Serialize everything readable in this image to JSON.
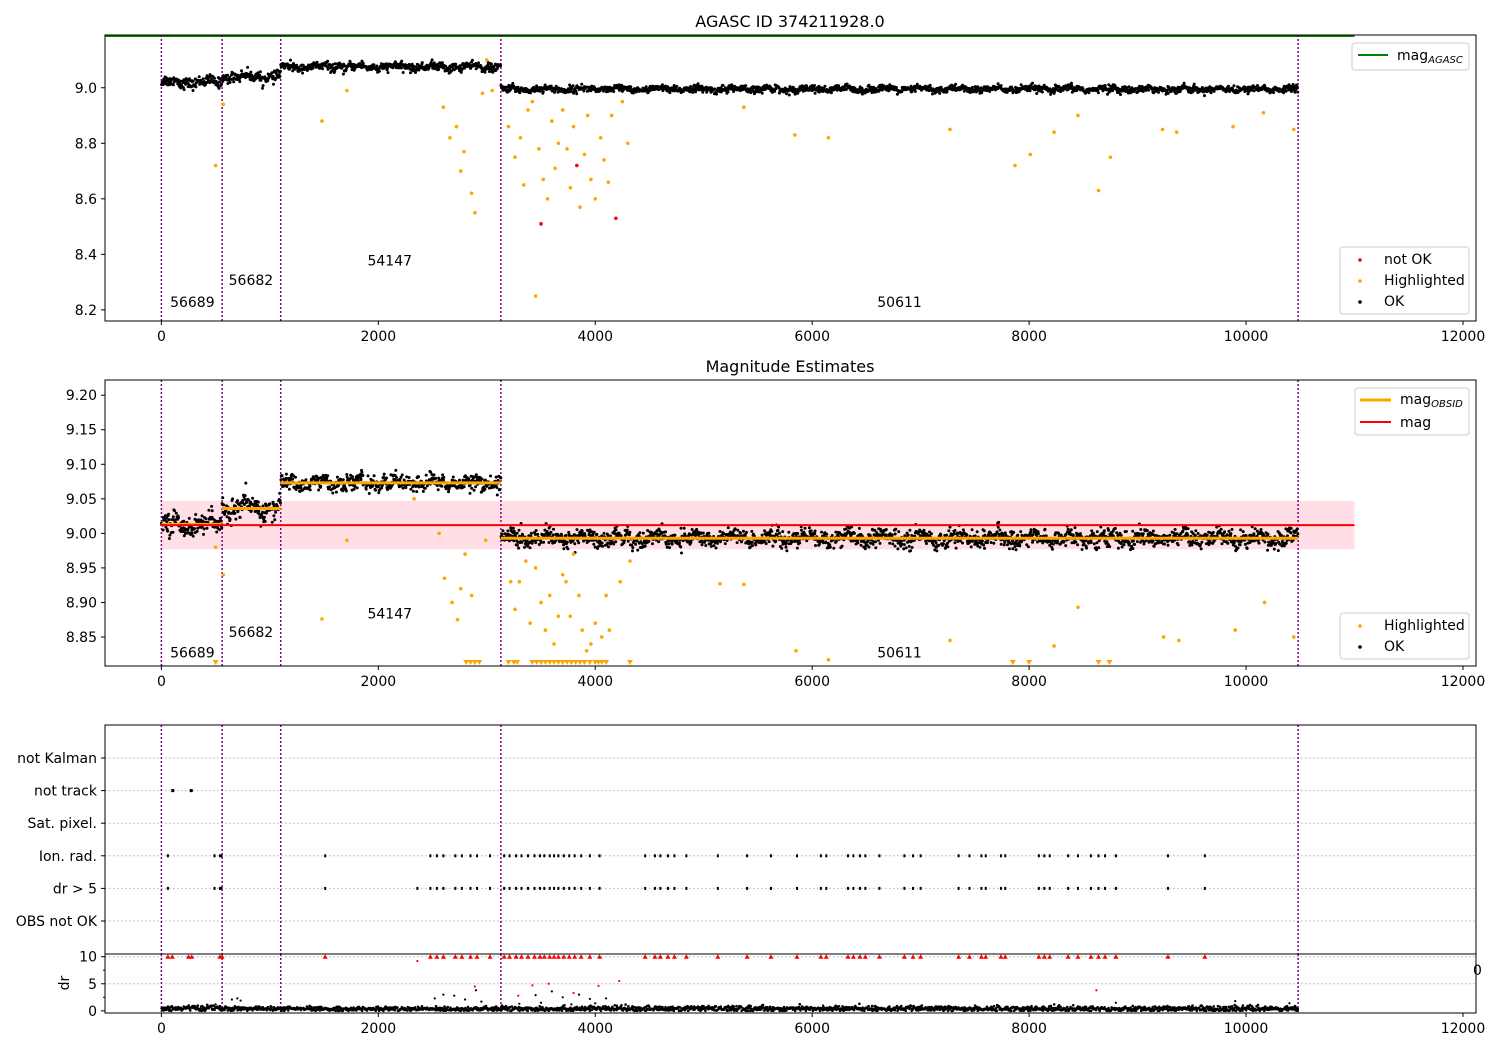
{
  "figure": {
    "title_top": "AGASC ID 374211928.0",
    "title_mid": "Magnitude Estimates"
  },
  "xaxis": {
    "xlim": [
      -520,
      12120
    ],
    "ticks": [
      0,
      2000,
      4000,
      6000,
      8000,
      10000,
      12000
    ],
    "tick_labels": [
      "0",
      "2000",
      "4000",
      "6000",
      "8000",
      "10000",
      "12000"
    ],
    "partial_label_visible_in_bottom": "0"
  },
  "obsids": [
    {
      "label": "56689",
      "start": 0,
      "end": 560,
      "mag_top": 9.02,
      "mag_mid": 9.013
    },
    {
      "label": "56682",
      "start": 560,
      "end": 1100,
      "mag_top": 9.04,
      "mag_mid": 9.036
    },
    {
      "label": "54147",
      "start": 1100,
      "end": 3130,
      "mag_top": 9.075,
      "mag_mid": 9.073
    },
    {
      "label": "50611",
      "start": 3130,
      "end": 10480,
      "mag_top": 8.995,
      "mag_mid": 8.993
    }
  ],
  "colors": {
    "ok": "#000000",
    "highlighted": "#ffa500",
    "not_ok": "#ff0000",
    "obs_boundary": "#800080",
    "mag_agasc_line": "#008000",
    "mag_line": "#ff0000",
    "mag_band": "#ffc0cb",
    "mag_obsid_line": "#ffa500",
    "dr_limit_markers": "#ff0000",
    "grid": "#b0b0b0"
  },
  "chart_data": [
    {
      "type": "scatter",
      "title": "AGASC ID 374211928.0",
      "xlim": [
        -520,
        12120
      ],
      "ylim": [
        8.16,
        9.19
      ],
      "yticks": [
        8.2,
        8.4,
        8.6,
        8.8,
        9.0
      ],
      "ytick_labels": [
        "8.2",
        "8.4",
        "8.6",
        "8.8",
        "9.0"
      ],
      "mag_agasc": 9.19,
      "mag_agasc_xrange": [
        -520,
        11000
      ],
      "obsid_labels": [
        {
          "text": "56689",
          "x": 80,
          "y": 8.21
        },
        {
          "text": "56682",
          "x": 620,
          "y": 8.29
        },
        {
          "text": "54147",
          "x": 1900,
          "y": 8.36
        },
        {
          "text": "50611",
          "x": 6600,
          "y": 8.21
        }
      ],
      "series": [
        {
          "name": "not OK",
          "color": "#ff0000",
          "points": [
            [
              3500,
              8.51
            ],
            [
              3830,
              8.72
            ],
            [
              4190,
              8.53
            ]
          ]
        },
        {
          "name": "Highlighted",
          "color": "#ffa500",
          "points": [
            [
              500,
              8.72
            ],
            [
              570,
              8.94
            ],
            [
              1480,
              8.88
            ],
            [
              1710,
              8.99
            ],
            [
              2600,
              8.93
            ],
            [
              2660,
              8.82
            ],
            [
              2720,
              8.86
            ],
            [
              2760,
              8.7
            ],
            [
              2790,
              8.77
            ],
            [
              2860,
              8.62
            ],
            [
              2890,
              8.55
            ],
            [
              2960,
              8.98
            ],
            [
              3000,
              9.1
            ],
            [
              3050,
              8.99
            ],
            [
              3200,
              8.86
            ],
            [
              3260,
              8.75
            ],
            [
              3310,
              8.82
            ],
            [
              3340,
              8.65
            ],
            [
              3380,
              8.92
            ],
            [
              3420,
              8.95
            ],
            [
              3450,
              8.25
            ],
            [
              3480,
              8.78
            ],
            [
              3520,
              8.67
            ],
            [
              3560,
              8.6
            ],
            [
              3600,
              8.88
            ],
            [
              3630,
              8.71
            ],
            [
              3660,
              8.8
            ],
            [
              3700,
              8.92
            ],
            [
              3740,
              8.78
            ],
            [
              3770,
              8.64
            ],
            [
              3800,
              8.86
            ],
            [
              3860,
              8.57
            ],
            [
              3900,
              8.76
            ],
            [
              3930,
              8.9
            ],
            [
              3960,
              8.67
            ],
            [
              4000,
              8.6
            ],
            [
              4050,
              8.82
            ],
            [
              4080,
              8.74
            ],
            [
              4120,
              8.66
            ],
            [
              4150,
              8.9
            ],
            [
              4250,
              8.95
            ],
            [
              4300,
              8.8
            ],
            [
              5370,
              8.93
            ],
            [
              5840,
              8.83
            ],
            [
              6150,
              8.82
            ],
            [
              7270,
              8.85
            ],
            [
              7870,
              8.72
            ],
            [
              8010,
              8.76
            ],
            [
              8230,
              8.84
            ],
            [
              8450,
              8.9
            ],
            [
              8640,
              8.63
            ],
            [
              8750,
              8.75
            ],
            [
              9230,
              8.85
            ],
            [
              9360,
              8.84
            ],
            [
              9880,
              8.86
            ],
            [
              10160,
              8.91
            ],
            [
              10440,
              8.85
            ]
          ]
        },
        {
          "name": "OK",
          "color": "#000000",
          "bands": [
            [
              0,
              560,
              9.02,
              0.015
            ],
            [
              560,
              1100,
              9.04,
              0.015
            ],
            [
              1100,
              3130,
              9.075,
              0.012
            ],
            [
              3130,
              10480,
              8.995,
              0.01
            ]
          ]
        }
      ],
      "legend": {
        "placement": "lower-right",
        "entries": [
          "not OK",
          "Highlighted",
          "OK"
        ]
      },
      "legend2": {
        "placement": "upper-right",
        "entries": [
          "mag_AGASC"
        ]
      }
    },
    {
      "type": "scatter",
      "title": "Magnitude Estimates",
      "xlim": [
        -520,
        12120
      ],
      "ylim": [
        8.808,
        9.222
      ],
      "yticks": [
        8.85,
        8.9,
        8.95,
        9.0,
        9.05,
        9.1,
        9.15,
        9.2
      ],
      "ytick_labels": [
        "8.85",
        "8.90",
        "8.95",
        "9.00",
        "9.05",
        "9.10",
        "9.15",
        "9.20"
      ],
      "mag": 9.012,
      "mag_band": [
        8.977,
        9.047
      ],
      "mag_xrange": [
        0,
        11000
      ],
      "obsid_labels": [
        {
          "text": "56689",
          "x": 80,
          "y": 8.82
        },
        {
          "text": "56682",
          "x": 620,
          "y": 8.85
        },
        {
          "text": "54147",
          "x": 1900,
          "y": 8.877
        },
        {
          "text": "50611",
          "x": 6600,
          "y": 8.82
        }
      ],
      "clipped_low_markers_x": [
        500,
        2810,
        2850,
        2890,
        2930,
        3200,
        3250,
        3280,
        3420,
        3460,
        3500,
        3540,
        3580,
        3620,
        3660,
        3700,
        3740,
        3780,
        3820,
        3860,
        3900,
        3950,
        4000,
        4030,
        4060,
        4100,
        4320,
        7850,
        8000,
        8640,
        8740
      ],
      "series": [
        {
          "name": "Highlighted",
          "color": "#ffa500",
          "points": [
            [
              500,
              8.98
            ],
            [
              570,
              8.94
            ],
            [
              1480,
              8.876
            ],
            [
              1710,
              8.99
            ],
            [
              2330,
              9.05
            ],
            [
              2560,
              9.0
            ],
            [
              2610,
              8.935
            ],
            [
              2680,
              8.9
            ],
            [
              2730,
              8.875
            ],
            [
              2760,
              8.92
            ],
            [
              2800,
              8.97
            ],
            [
              2860,
              8.91
            ],
            [
              2990,
              8.99
            ],
            [
              3220,
              8.93
            ],
            [
              3260,
              8.89
            ],
            [
              3300,
              8.93
            ],
            [
              3360,
              8.96
            ],
            [
              3400,
              8.87
            ],
            [
              3450,
              8.95
            ],
            [
              3500,
              8.9
            ],
            [
              3540,
              8.86
            ],
            [
              3580,
              8.91
            ],
            [
              3620,
              8.84
            ],
            [
              3660,
              8.88
            ],
            [
              3700,
              8.94
            ],
            [
              3730,
              8.93
            ],
            [
              3770,
              8.88
            ],
            [
              3800,
              8.97
            ],
            [
              3850,
              8.91
            ],
            [
              3880,
              8.86
            ],
            [
              3920,
              8.83
            ],
            [
              3960,
              8.84
            ],
            [
              4000,
              8.87
            ],
            [
              4060,
              8.85
            ],
            [
              4100,
              8.91
            ],
            [
              4130,
              8.86
            ],
            [
              4230,
              8.93
            ],
            [
              4320,
              8.96
            ],
            [
              5150,
              8.927
            ],
            [
              5370,
              8.926
            ],
            [
              5850,
              8.83
            ],
            [
              6150,
              8.817
            ],
            [
              7270,
              8.845
            ],
            [
              8230,
              8.837
            ],
            [
              8450,
              8.893
            ],
            [
              9240,
              8.85
            ],
            [
              9380,
              8.845
            ],
            [
              9900,
              8.86
            ],
            [
              10170,
              8.9
            ],
            [
              10440,
              8.85
            ]
          ]
        },
        {
          "name": "OK",
          "color": "#000000",
          "bands": [
            [
              0,
              560,
              9.013,
              0.012
            ],
            [
              560,
              1100,
              9.036,
              0.013
            ],
            [
              1100,
              3130,
              9.073,
              0.009
            ],
            [
              3130,
              10480,
              8.993,
              0.01
            ]
          ]
        }
      ],
      "legend": {
        "placement": "lower-right",
        "entries": [
          "Highlighted",
          "OK"
        ]
      },
      "legend2": {
        "placement": "upper-right",
        "entries": [
          "mag_OBSID",
          "mag"
        ]
      }
    },
    {
      "type": "scatter",
      "title": "",
      "xlim": [
        -520,
        12120
      ],
      "categories": [
        "not Kalman",
        "not track",
        "Sat. pixel.",
        "Ion. rad.",
        "dr > 5",
        "OBS not OK"
      ],
      "flag_x": {
        "not Kalman": [],
        "not track": [
          100,
          110,
          270,
          280
        ],
        "Sat. pixel.": [],
        "Ion. rad.": [
          60,
          490,
          540,
          555,
          1510,
          2480,
          2540,
          2600,
          2710,
          2770,
          2850,
          2910,
          3030,
          3160,
          3210,
          3270,
          3320,
          3380,
          3440,
          3490,
          3530,
          3580,
          3620,
          3660,
          3710,
          3760,
          3810,
          3870,
          3950,
          4040,
          4460,
          4550,
          4600,
          4670,
          4730,
          4840,
          5130,
          5400,
          5620,
          5860,
          6080,
          6130,
          6330,
          6380,
          6440,
          6490,
          6620,
          6850,
          6930,
          7000,
          7350,
          7450,
          7560,
          7600,
          7740,
          7780,
          8090,
          8140,
          8190,
          8360,
          8450,
          8570,
          8640,
          8700,
          8800,
          9280,
          9620
        ],
        "dr > 5": [
          60,
          490,
          540,
          555,
          1510,
          2360,
          2480,
          2540,
          2600,
          2710,
          2770,
          2850,
          2910,
          3030,
          3160,
          3210,
          3270,
          3320,
          3380,
          3440,
          3490,
          3530,
          3580,
          3620,
          3660,
          3710,
          3760,
          3810,
          3870,
          3950,
          4040,
          4460,
          4550,
          4600,
          4670,
          4730,
          4840,
          5130,
          5400,
          5620,
          5860,
          6080,
          6130,
          6330,
          6380,
          6440,
          6490,
          6620,
          6850,
          6930,
          7000,
          7350,
          7450,
          7560,
          7600,
          7740,
          7780,
          8090,
          8140,
          8190,
          8360,
          8450,
          8570,
          8640,
          8700,
          8800,
          9280,
          9620
        ],
        "OBS not OK": []
      }
    },
    {
      "type": "scatter",
      "title": "",
      "xlim": [
        -520,
        12120
      ],
      "ylim": [
        -0.4,
        10.5
      ],
      "yticks": [
        0,
        5,
        10
      ],
      "ytick_labels": [
        "0",
        "5",
        "10"
      ],
      "ylabel": "dr",
      "dr_limit": 10,
      "above_limit_x": [
        60,
        100,
        250,
        280,
        540,
        560,
        1510,
        2480,
        2540,
        2600,
        2710,
        2770,
        2850,
        2910,
        3030,
        3160,
        3210,
        3270,
        3320,
        3380,
        3440,
        3490,
        3530,
        3580,
        3620,
        3660,
        3710,
        3760,
        3810,
        3870,
        3950,
        4040,
        4460,
        4550,
        4600,
        4670,
        4730,
        4840,
        5130,
        5400,
        5620,
        5860,
        6080,
        6130,
        6330,
        6380,
        6440,
        6490,
        6620,
        6850,
        6930,
        7000,
        7350,
        7450,
        7560,
        7600,
        7740,
        7780,
        8090,
        8140,
        8190,
        8360,
        8450,
        8570,
        8640,
        8700,
        8800,
        9280,
        9620
      ],
      "outlier_red_points": [
        [
          2360,
          9.2
        ],
        [
          2890,
          4.5
        ],
        [
          3290,
          2.8
        ],
        [
          3420,
          4.7
        ],
        [
          3570,
          5.0
        ],
        [
          3800,
          3.3
        ],
        [
          4030,
          4.6
        ],
        [
          4220,
          5.5
        ],
        [
          8620,
          3.8
        ]
      ],
      "outlier_black_points": [
        [
          500,
          1.2
        ],
        [
          540,
          0.9
        ],
        [
          650,
          2.1
        ],
        [
          700,
          2.3
        ],
        [
          730,
          1.9
        ],
        [
          2520,
          2.3
        ],
        [
          2600,
          3.0
        ],
        [
          2700,
          2.8
        ],
        [
          2800,
          2.1
        ],
        [
          2900,
          3.8
        ],
        [
          2950,
          1.7
        ],
        [
          3300,
          1.3
        ],
        [
          3450,
          2.9
        ],
        [
          3500,
          1.5
        ],
        [
          3600,
          3.6
        ],
        [
          3700,
          2.5
        ],
        [
          3780,
          1.2
        ],
        [
          3850,
          3.0
        ],
        [
          3950,
          2.2
        ],
        [
          4000,
          1.4
        ],
        [
          4100,
          2.3
        ],
        [
          4200,
          1.0
        ],
        [
          5000,
          0.9
        ],
        [
          6100,
          1.0
        ],
        [
          8800,
          1.5
        ],
        [
          9200,
          0.8
        ],
        [
          9900,
          1.8
        ],
        [
          10400,
          1.4
        ]
      ],
      "baseline_bands": [
        [
          0,
          560,
          0.5,
          0.25
        ],
        [
          560,
          1100,
          0.4,
          0.2
        ],
        [
          1100,
          3130,
          0.35,
          0.2
        ],
        [
          3130,
          10480,
          0.4,
          0.25
        ]
      ]
    }
  ],
  "legends": {
    "top_lower": [
      "not OK",
      "Highlighted",
      "OK"
    ],
    "top_upper_prefix": "mag",
    "top_upper_sub": "AGASC",
    "mid_upper_prefix": "mag",
    "mid_upper_sub": "OBSID",
    "mid_upper_2": "mag",
    "mid_lower": [
      "Highlighted",
      "OK"
    ]
  },
  "dr_ylabel": "dr"
}
